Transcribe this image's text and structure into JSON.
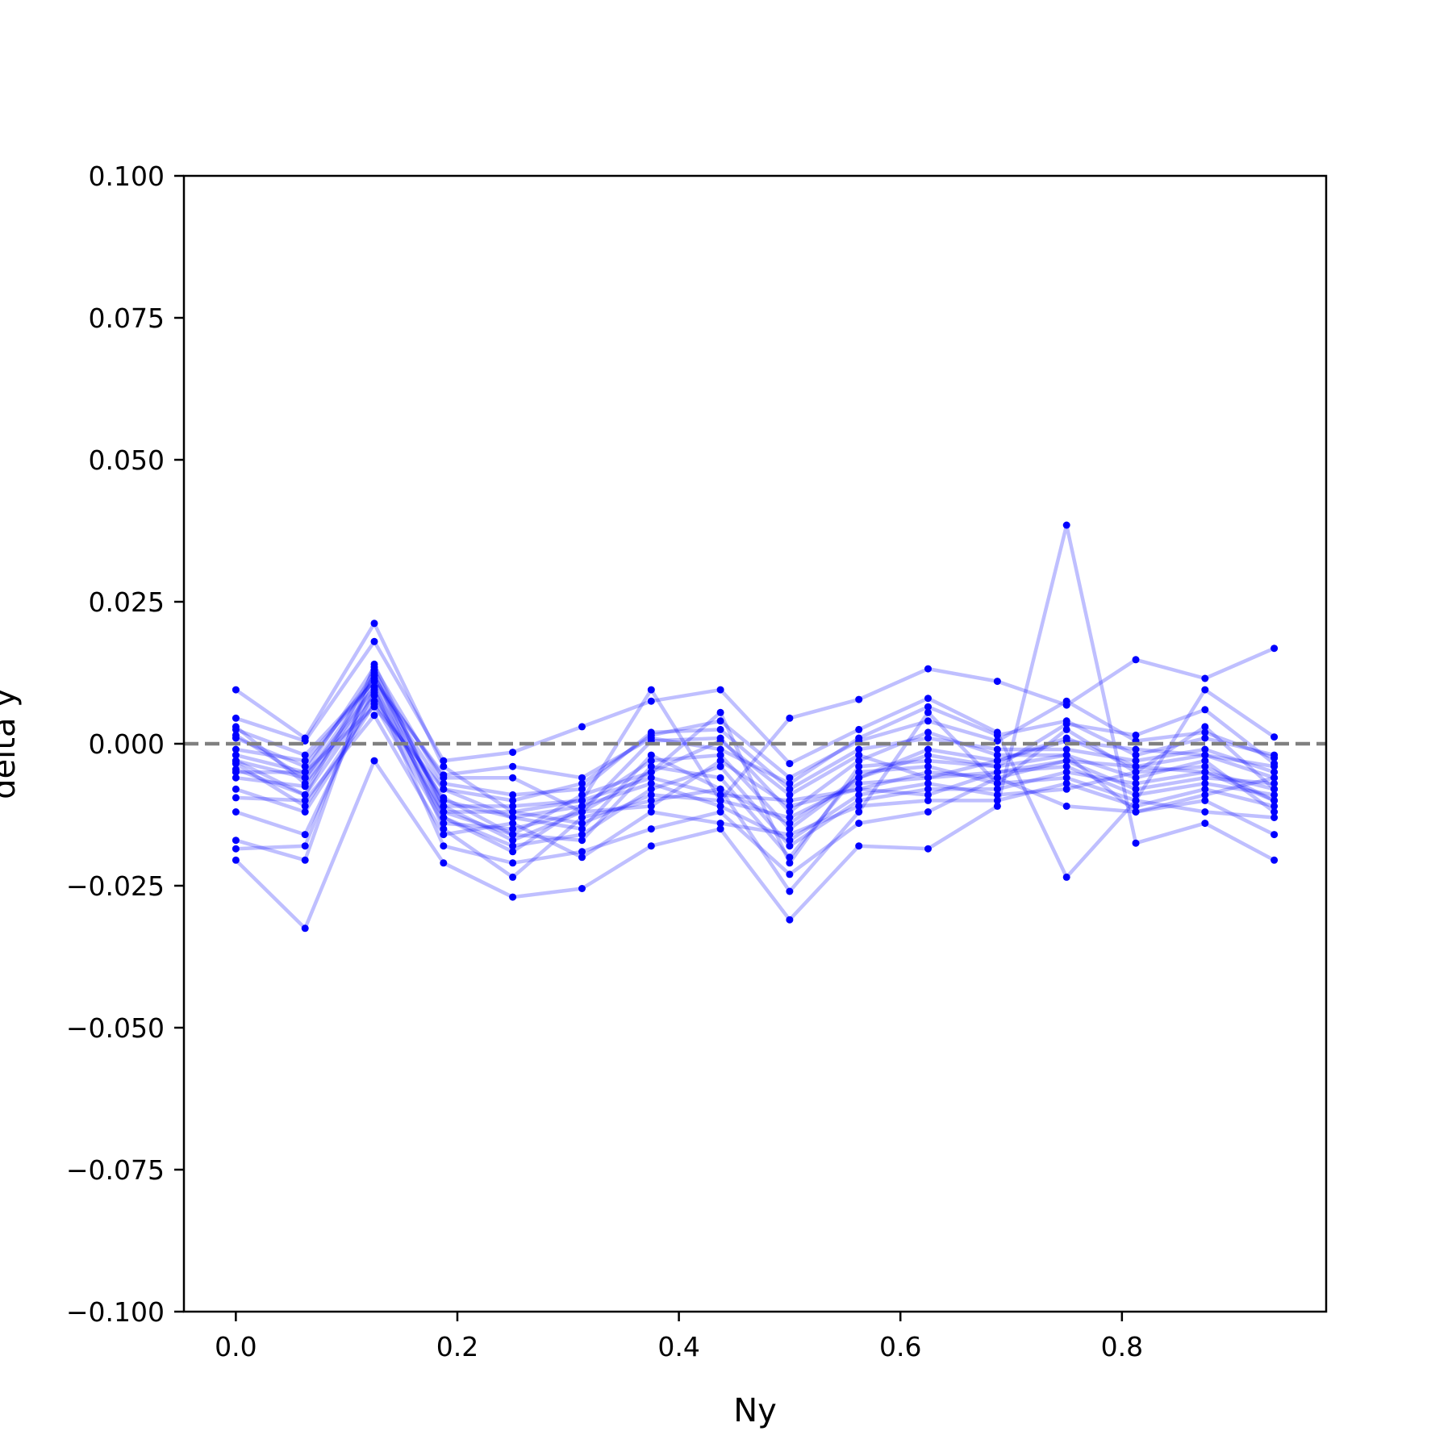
{
  "chart_data": {
    "type": "line",
    "xlabel": "Ny",
    "ylabel": "delta y",
    "xlim": [
      -0.046875,
      0.984375
    ],
    "ylim": [
      -0.1,
      0.1
    ],
    "x_ticks": [
      0.0,
      0.2,
      0.4,
      0.6,
      0.8
    ],
    "x_tick_labels": [
      "0.0",
      "0.2",
      "0.4",
      "0.6",
      "0.8"
    ],
    "y_ticks": [
      -0.1,
      -0.075,
      -0.05,
      -0.025,
      0.0,
      0.025,
      0.05,
      0.075,
      0.1
    ],
    "y_tick_labels": [
      "−0.100",
      "−0.075",
      "−0.050",
      "−0.025",
      "0.000",
      "0.025",
      "0.050",
      "0.075",
      "0.100"
    ],
    "reference_line": {
      "y": 0.0,
      "style": "dashed",
      "color": "#808080"
    },
    "series_color": "#0000ff",
    "series_line_opacity": 0.25,
    "grid": false,
    "x": [
      0.0,
      0.0625,
      0.125,
      0.1875,
      0.25,
      0.3125,
      0.375,
      0.4375,
      0.5,
      0.5625,
      0.625,
      0.6875,
      0.75,
      0.8125,
      0.875,
      0.9375
    ],
    "series": [
      {
        "values": [
          0.0095,
          0.001,
          0.0212,
          -0.004,
          -0.012,
          -0.01,
          0.0095,
          -0.01,
          0.0045,
          0.0078,
          0.0132,
          0.011,
          0.0068,
          0.0148,
          0.0115,
          0.0168
        ]
      },
      {
        "values": [
          -0.0205,
          -0.0325,
          -0.003,
          -0.021,
          -0.027,
          -0.0255,
          -0.018,
          -0.015,
          -0.031,
          -0.018,
          -0.0185,
          -0.011,
          0.0385,
          -0.0175,
          -0.014,
          -0.0205
        ]
      },
      {
        "values": [
          0.0045,
          0.0005,
          0.018,
          -0.003,
          -0.0015,
          0.003,
          0.0075,
          0.0095,
          -0.0035,
          0.0025,
          0.008,
          0.002,
          -0.0235,
          -0.01,
          0.0095,
          0.0012
        ]
      },
      {
        "values": [
          -0.017,
          -0.0205,
          0.014,
          -0.012,
          -0.016,
          -0.009,
          -0.005,
          0.0055,
          -0.021,
          -0.004,
          -0.003,
          -0.004,
          0.0035,
          0.0015,
          0.006,
          -0.0035
        ]
      },
      {
        "values": [
          -0.0185,
          -0.018,
          0.0125,
          -0.015,
          -0.0235,
          -0.013,
          -0.01,
          -0.008,
          -0.026,
          -0.012,
          0.0055,
          -0.007,
          0.0025,
          -0.005,
          0.003,
          -0.008
        ]
      },
      {
        "values": [
          0.0025,
          -0.002,
          0.011,
          -0.008,
          -0.01,
          -0.007,
          0.0015,
          0.004,
          -0.006,
          0.0005,
          0.004,
          0.0005,
          0.0075,
          0.0005,
          0.002,
          -0.0025
        ]
      },
      {
        "values": [
          -0.012,
          -0.016,
          0.0095,
          -0.018,
          -0.021,
          -0.019,
          -0.015,
          -0.012,
          -0.023,
          -0.014,
          -0.012,
          -0.006,
          -0.011,
          -0.012,
          -0.01,
          -0.016
        ]
      },
      {
        "values": [
          -0.003,
          -0.006,
          0.01,
          -0.01,
          -0.013,
          -0.011,
          -0.003,
          -0.002,
          -0.015,
          -0.006,
          -0.001,
          -0.003,
          0.001,
          -0.004,
          -0.002,
          -0.006
        ]
      },
      {
        "values": [
          -0.0045,
          -0.009,
          0.0085,
          -0.013,
          -0.018,
          -0.016,
          -0.008,
          -0.004,
          -0.018,
          -0.01,
          -0.008,
          -0.008,
          -0.005,
          -0.007,
          -0.005,
          -0.01
        ]
      },
      {
        "values": [
          -0.008,
          -0.012,
          0.007,
          -0.014,
          -0.015,
          -0.012,
          0.0005,
          0.001,
          -0.012,
          -0.003,
          0.002,
          -0.002,
          -0.002,
          -0.006,
          -0.003,
          -0.012
        ]
      },
      {
        "values": [
          0.001,
          -0.004,
          0.012,
          -0.011,
          -0.011,
          -0.01,
          -0.006,
          -0.009,
          -0.01,
          -0.008,
          -0.005,
          -0.006,
          -0.003,
          -0.008,
          -0.006,
          -0.007
        ]
      },
      {
        "values": [
          -0.0095,
          -0.01,
          0.005,
          -0.016,
          -0.014,
          -0.02,
          -0.012,
          -0.014,
          -0.016,
          -0.011,
          -0.01,
          -0.01,
          -0.007,
          -0.011,
          -0.008,
          -0.011
        ]
      },
      {
        "values": [
          -0.002,
          -0.005,
          0.0135,
          -0.007,
          -0.009,
          -0.008,
          0.002,
          0.0025,
          -0.008,
          -0.001,
          0.001,
          -0.001,
          -0.001,
          -0.003,
          -0.001,
          -0.005
        ]
      },
      {
        "values": [
          -0.006,
          -0.0075,
          0.009,
          -0.012,
          -0.012,
          -0.014,
          -0.009,
          -0.01,
          -0.013,
          -0.007,
          -0.006,
          -0.005,
          -0.004,
          -0.009,
          -0.007,
          -0.009
        ]
      },
      {
        "values": [
          -0.0035,
          -0.011,
          0.0075,
          -0.0095,
          -0.016,
          -0.017,
          -0.004,
          -0.006,
          -0.02,
          -0.005,
          -0.004,
          -0.007,
          -0.006,
          -0.01,
          -0.012,
          -0.013
        ]
      },
      {
        "values": [
          -0.001,
          -0.003,
          0.011,
          -0.0055,
          -0.004,
          -0.006,
          0.001,
          -0.001,
          -0.007,
          0.001,
          0.0065,
          0.0015,
          0.004,
          -0.002,
          0.001,
          -0.002
        ]
      },
      {
        "values": [
          0.003,
          -0.007,
          0.01,
          -0.013,
          -0.019,
          -0.011,
          -0.007,
          -0.011,
          -0.017,
          -0.009,
          -0.007,
          -0.009,
          -0.008,
          -0.005,
          -0.004,
          -0.01
        ]
      },
      {
        "values": [
          -0.005,
          -0.005,
          0.0065,
          -0.008,
          -0.013,
          -0.015,
          -0.002,
          -0.008,
          -0.014,
          -0.006,
          -0.002,
          -0.004,
          -0.002,
          -0.012,
          -0.009,
          -0.006
        ]
      },
      {
        "values": [
          -0.003,
          -0.009,
          0.013,
          -0.011,
          -0.017,
          -0.012,
          -0.011,
          -0.003,
          -0.011,
          -0.008,
          -0.009,
          -0.005,
          -0.003,
          -0.004,
          -0.005,
          -0.008
        ]
      },
      {
        "values": [
          0.0015,
          -0.006,
          0.0115,
          -0.006,
          -0.006,
          -0.012,
          -0.005,
          0.0005,
          -0.009,
          -0.002,
          -0.006,
          -0.003,
          0.0005,
          -0.001,
          -0.002,
          -0.004
        ]
      }
    ]
  }
}
